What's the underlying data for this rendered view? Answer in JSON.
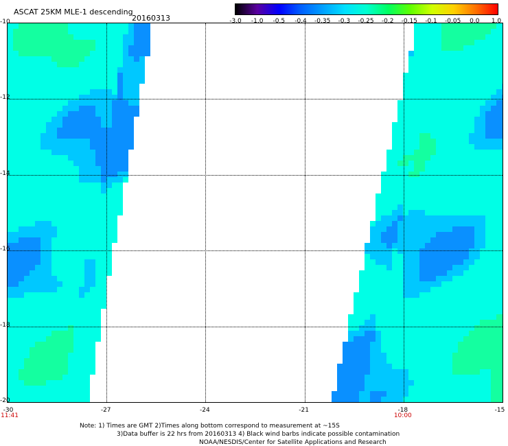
{
  "header": {
    "title": "ASCAT 25KM MLE-1 descending",
    "date": "20160313"
  },
  "colors": {
    "swath_base": "#00ffe6",
    "swath_mid": "#14ffa0",
    "swath_low": "#00c8ff",
    "swath_deep": "#0a90ff",
    "time_label": "#cc0000"
  },
  "colorbar": {
    "labels": [
      "-3.0",
      "-1.0",
      "-0.5",
      "-0.4",
      "-0.35",
      "-0.3",
      "-0.25",
      "-0.2",
      "-0.15",
      "-0.1",
      "-0.05",
      "0.0",
      "1.0"
    ],
    "colors": [
      "#000000",
      "#5a00a0",
      "#0000ff",
      "#0060ff",
      "#00a0ff",
      "#00e0ff",
      "#00ffd0",
      "#00ff60",
      "#60ff00",
      "#d0ff00",
      "#ffd000",
      "#ff7000",
      "#ff0000"
    ]
  },
  "map": {
    "lat_range": [
      -20,
      -10
    ],
    "lon_range": [
      -30,
      -15
    ],
    "lat_ticks": [
      "-10",
      "-12",
      "-14",
      "-16",
      "-18",
      "-20"
    ],
    "lon_ticks": [
      "-30",
      "-27",
      "-24",
      "-21",
      "-18",
      "-15"
    ],
    "time_labels": [
      {
        "lon": -30,
        "text": "11:41"
      },
      {
        "lon": -18,
        "text": "10:00"
      }
    ]
  },
  "notes": {
    "line1": "Note: 1) Times are GMT 2)Times along bottom correspond to measurement at ~15S",
    "line2": "3)Data buffer is 22 hrs from 20160313 4) Black wind barbs indicate possible contamination",
    "line3": "NOAA/NESDIS/Center for Satellite Applications and Research"
  }
}
